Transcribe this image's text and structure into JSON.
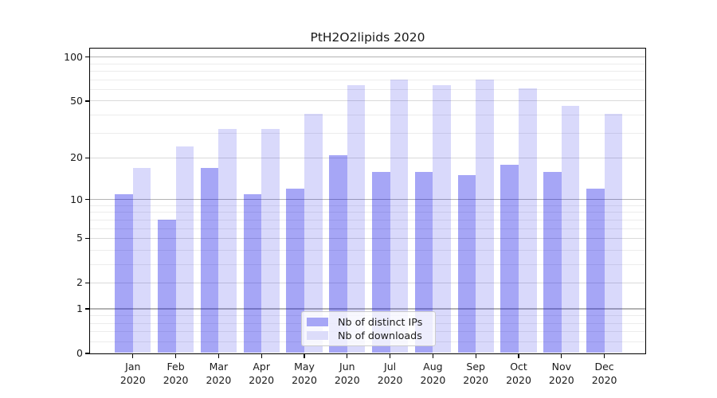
{
  "chart_data": {
    "type": "bar",
    "title": "PtH2O2lipids 2020",
    "categories": [
      "Jan",
      "Feb",
      "Mar",
      "Apr",
      "May",
      "Jun",
      "Jul",
      "Aug",
      "Sep",
      "Oct",
      "Nov",
      "Dec"
    ],
    "category_year_line": "2020",
    "series": [
      {
        "name": "Nb of distinct IPs",
        "values": [
          11,
          7,
          17,
          11,
          12,
          21,
          16,
          16,
          15,
          18,
          16,
          12
        ]
      },
      {
        "name": "Nb of downloads",
        "values": [
          17,
          24,
          32,
          32,
          41,
          64,
          70,
          64,
          70,
          61,
          46,
          41
        ]
      }
    ],
    "y_axis": {
      "scale": "log1p",
      "major_ticks": [
        100,
        50,
        20,
        10,
        5,
        2,
        1,
        0
      ],
      "decade_ticks": [
        1,
        10,
        100
      ],
      "minor_ticks": [
        0.2,
        0.4,
        0.6,
        0.8,
        3,
        4,
        6,
        7,
        8,
        9,
        30,
        40,
        60,
        70,
        80,
        90
      ],
      "ylim": [
        0,
        115
      ]
    },
    "xlabel": "",
    "ylabel": "",
    "grid": true,
    "legend_position": "lower center"
  },
  "colors": {
    "ip_bar": "rgba(0,0,229,0.35)",
    "downloads_bar": "rgba(0,0,228,0.15)",
    "ip_swatch": "#a6a6f6",
    "downloads_swatch": "#dcdcfa",
    "grid_decade": "#b3b3b3",
    "grid_major": "#dadada",
    "grid_minor": "#ececec",
    "spine": "#000000",
    "text": "#1a1a1a"
  }
}
